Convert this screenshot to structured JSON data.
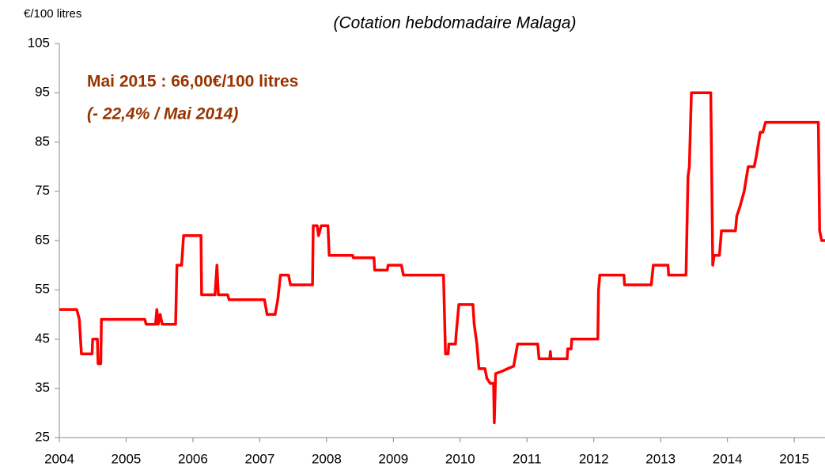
{
  "chart_data": {
    "type": "line",
    "title": "(Cotation hebdomadaire Malaga)",
    "y_label": "€/100 litres",
    "annotations": [
      "Mai 2015  : 66,00€/100 litres",
      "(- 22,4% / Mai 2014)"
    ],
    "color": "#ff0000",
    "x": [
      2004.0,
      2004.26,
      2004.3,
      2004.33,
      2004.49,
      2004.5,
      2004.57,
      2004.58,
      2004.62,
      2004.63,
      2005.28,
      2005.3,
      2005.44,
      2005.46,
      2005.48,
      2005.51,
      2005.54,
      2005.74,
      2005.76,
      2005.83,
      2005.86,
      2006.12,
      2006.13,
      2006.33,
      2006.36,
      2006.38,
      2006.52,
      2006.54,
      2007.07,
      2007.11,
      2007.23,
      2007.27,
      2007.31,
      2007.43,
      2007.46,
      2007.79,
      2007.8,
      2007.86,
      2007.88,
      2007.92,
      2008.02,
      2008.04,
      2008.39,
      2008.4,
      2008.71,
      2008.72,
      2008.91,
      2008.92,
      2009.12,
      2009.15,
      2009.75,
      2009.78,
      2009.82,
      2009.83,
      2009.93,
      2009.94,
      2009.98,
      2010.19,
      2010.21,
      2010.25,
      2010.28,
      2010.37,
      2010.4,
      2010.45,
      2010.5,
      2010.51,
      2010.53,
      2010.63,
      2010.71,
      2010.8,
      2010.86,
      2011.16,
      2011.18,
      2011.34,
      2011.35,
      2011.36,
      2011.6,
      2011.61,
      2011.66,
      2011.67,
      2012.06,
      2012.07,
      2012.09,
      2012.45,
      2012.46,
      2012.86,
      2012.89,
      2013.11,
      2013.12,
      2013.38,
      2013.41,
      2013.43,
      2013.46,
      2013.75,
      2013.78,
      2013.8,
      2013.88,
      2013.91,
      2014.12,
      2014.14,
      2014.19,
      2014.25,
      2014.31,
      2014.4,
      2014.43,
      2014.49,
      2014.53,
      2014.57,
      2015.36,
      2015.38,
      2015.41,
      2015.46
    ],
    "values": [
      51,
      51,
      49,
      42,
      42,
      45,
      45,
      40,
      40,
      49,
      49,
      48,
      48,
      51,
      48,
      50,
      48,
      48,
      60,
      60,
      66,
      66,
      54,
      54,
      60,
      54,
      54,
      53,
      53,
      50,
      50,
      53,
      58,
      58,
      56,
      56,
      68,
      68,
      66,
      68,
      68,
      62,
      62,
      61.5,
      61.5,
      59,
      59,
      60,
      60,
      58,
      58,
      42,
      42,
      44,
      44,
      46,
      52,
      52,
      48,
      44,
      39,
      39,
      37,
      36,
      36,
      28,
      38,
      38.5,
      39,
      39.5,
      44,
      44,
      41,
      41,
      42.5,
      41,
      41,
      43,
      43,
      45,
      45,
      55,
      58,
      58,
      56,
      56,
      60,
      60,
      58,
      58,
      78,
      80,
      95,
      95,
      60,
      62,
      62,
      67,
      67,
      70,
      72,
      75,
      80,
      80,
      82,
      87,
      87,
      89,
      89,
      67,
      65,
      65
    ],
    "xlim": [
      2004,
      2015.46
    ],
    "xticks": [
      2004,
      2005,
      2006,
      2007,
      2008,
      2009,
      2010,
      2011,
      2012,
      2013,
      2014,
      2015
    ],
    "ylim": [
      25,
      105
    ],
    "yticks": [
      25,
      35,
      45,
      55,
      65,
      75,
      85,
      95,
      105
    ]
  }
}
